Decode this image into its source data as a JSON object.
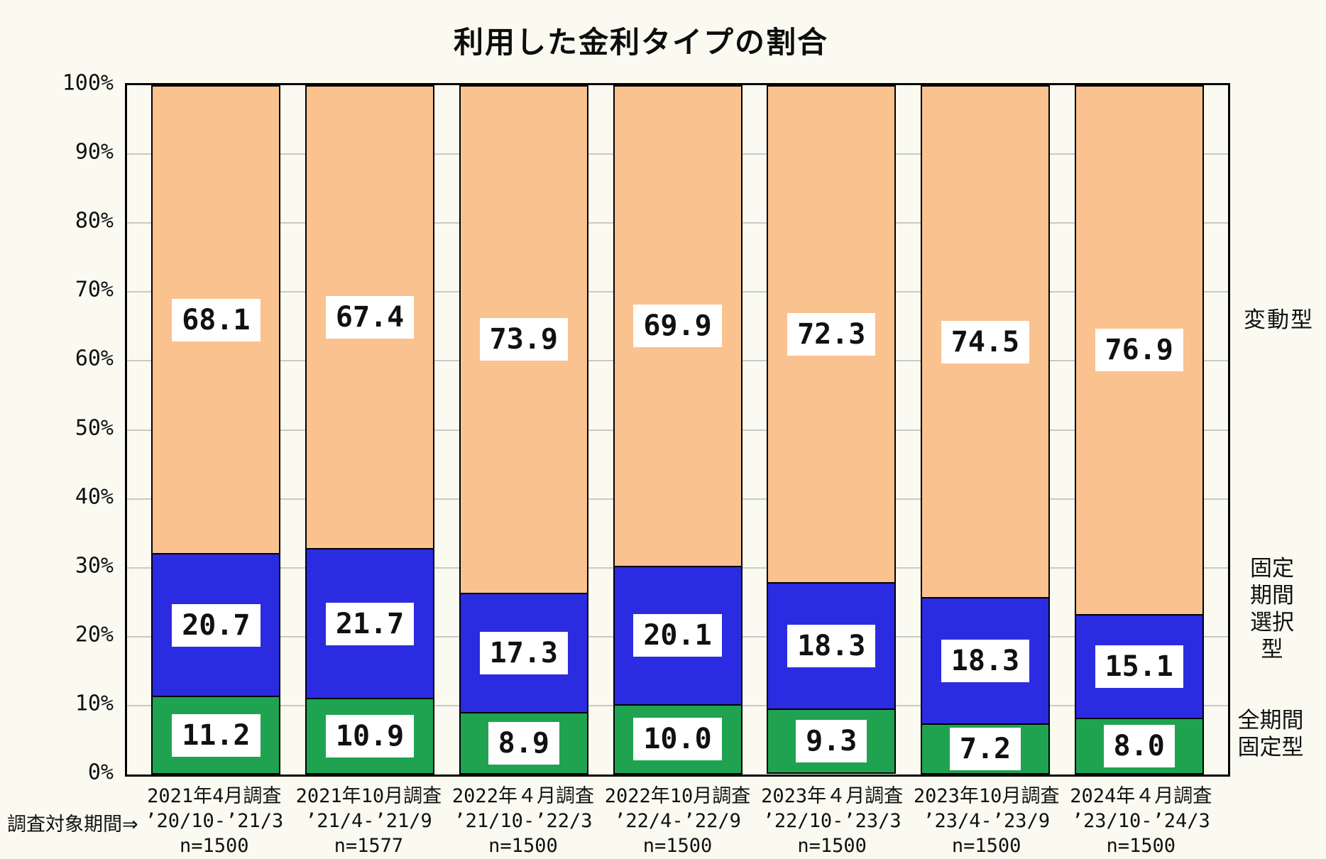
{
  "chart_data": {
    "type": "bar",
    "subtype": "stacked-percentage-column",
    "title": "利用した金利タイプの割合",
    "x_axis_prefix": "調査対象期間⇒",
    "y_axis": {
      "min": 0,
      "max": 100,
      "step": 10,
      "grid": true
    },
    "y_ticks": [
      "0%",
      "10%",
      "20%",
      "30%",
      "40%",
      "50%",
      "60%",
      "70%",
      "80%",
      "90%",
      "100%"
    ],
    "categories": [
      {
        "survey": "2021年4月調査",
        "period": "’20/10-’21/3",
        "n": "n=1500"
      },
      {
        "survey": "2021年10月調査",
        "period": "’21/4-’21/9",
        "n": "n=1577"
      },
      {
        "survey": "2022年４月調査",
        "period": "’21/10-’22/3",
        "n": "n=1500"
      },
      {
        "survey": "2022年10月調査",
        "period": "’22/4-’22/9",
        "n": "n=1500"
      },
      {
        "survey": "2023年４月調査",
        "period": "’22/10-’23/3",
        "n": "n=1500"
      },
      {
        "survey": "2023年10月調査",
        "period": "’23/4-’23/9",
        "n": "n=1500"
      },
      {
        "survey": "2024年４月調査",
        "period": "’23/10-’24/3",
        "n": "n=1500"
      }
    ],
    "series": [
      {
        "name": "変動型",
        "key": "variable",
        "color": "#f9c28f",
        "values": [
          68.1,
          67.4,
          73.9,
          69.9,
          72.3,
          74.5,
          76.9
        ],
        "labels": [
          "68.1",
          "67.4",
          "73.9",
          "69.9",
          "72.3",
          "74.5",
          "76.9"
        ]
      },
      {
        "name": "固定期間選択型",
        "key": "fixed-period-select",
        "color": "#2b2be2",
        "values": [
          20.7,
          21.7,
          17.3,
          20.1,
          18.3,
          18.3,
          15.1
        ],
        "labels": [
          "20.7",
          "21.7",
          "17.3",
          "20.1",
          "18.3",
          "18.3",
          "15.1"
        ]
      },
      {
        "name": "全期間固定型",
        "key": "full-term-fixed",
        "color": "#1fa351",
        "values": [
          11.2,
          10.9,
          8.9,
          10.0,
          9.3,
          7.2,
          8.0
        ],
        "labels": [
          "11.2",
          "10.9",
          "8.9",
          "10.0",
          "9.3",
          "7.2",
          "8.0"
        ]
      }
    ],
    "right_labels": [
      {
        "lines": [
          "変動型"
        ]
      },
      {
        "lines": [
          "固定",
          "期間",
          "選択",
          "型"
        ]
      },
      {
        "lines": [
          "全期間",
          "固定型"
        ]
      }
    ],
    "colors": {
      "background": "#fbfaf1",
      "gridline": "#c9c9c9",
      "border": "#000000",
      "label_box": "#ffffff"
    }
  }
}
